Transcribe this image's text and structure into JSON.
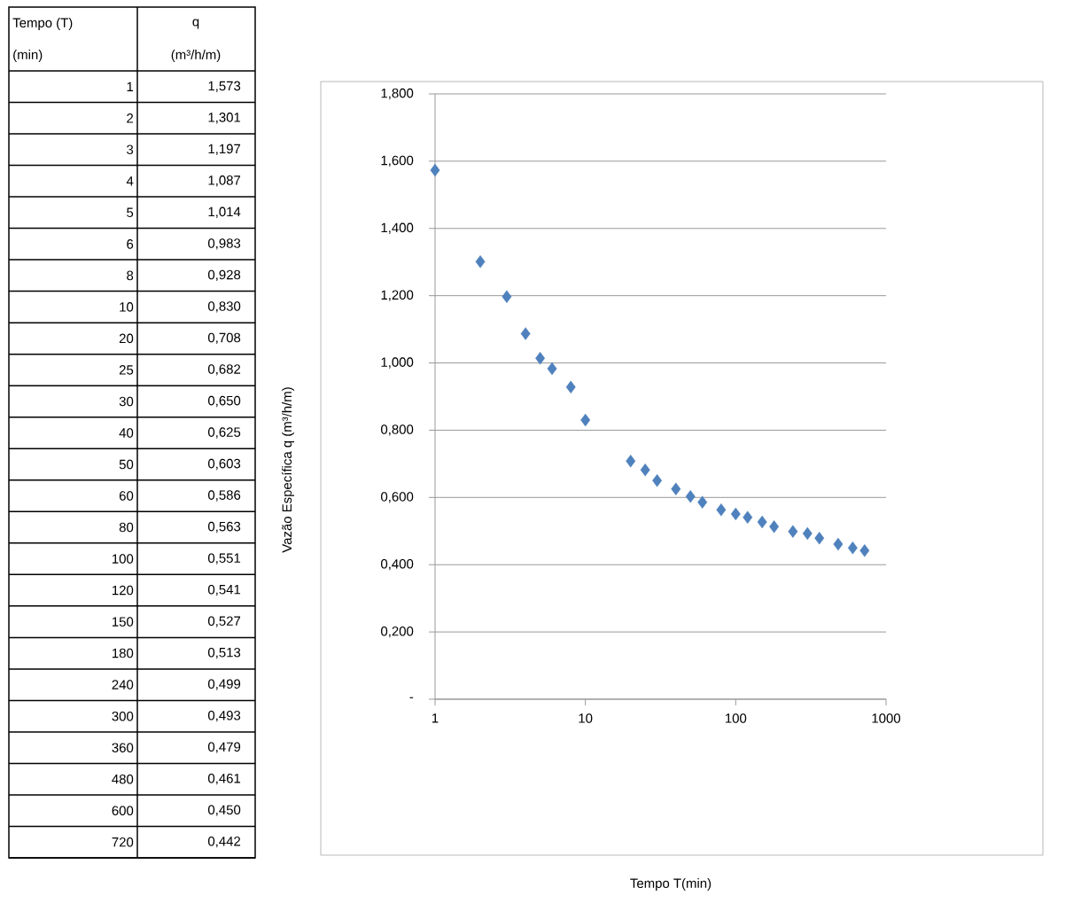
{
  "chart_data": {
    "type": "scatter",
    "x": [
      1,
      2,
      3,
      4,
      5,
      6,
      8,
      10,
      20,
      25,
      30,
      40,
      50,
      60,
      80,
      100,
      120,
      150,
      180,
      240,
      300,
      360,
      480,
      600,
      720
    ],
    "values": [
      1.573,
      1.301,
      1.197,
      1.087,
      1.014,
      0.983,
      0.928,
      0.83,
      0.708,
      0.682,
      0.65,
      0.625,
      0.603,
      0.586,
      0.563,
      0.551,
      0.541,
      0.527,
      0.513,
      0.499,
      0.493,
      0.479,
      0.461,
      0.45,
      0.442
    ],
    "color": "#4f81bd",
    "marker": "diamond",
    "log": "x",
    "grid": "y",
    "xlim": [
      1,
      1000
    ],
    "xticks": [
      1,
      10,
      100,
      1000
    ],
    "ylim": [
      0,
      1.8
    ],
    "yticks": [
      {
        "value": 0,
        "label": "-"
      },
      {
        "value": 0.2,
        "label": "0,200"
      },
      {
        "value": 0.4,
        "label": "0,400"
      },
      {
        "value": 0.6,
        "label": "0,600"
      },
      {
        "value": 0.8,
        "label": "0,800"
      },
      {
        "value": 1.0,
        "label": "1,000"
      },
      {
        "value": 1.2,
        "label": "1,200"
      },
      {
        "value": 1.4,
        "label": "1,400"
      },
      {
        "value": 1.6,
        "label": "1,600"
      },
      {
        "value": 1.8,
        "label": "1,800"
      }
    ],
    "annotations": [
      "Vazão Específica q (m³/h/m)",
      "Tempo T(min)",
      "Tempo (T)",
      "(min)",
      "q",
      "(m³/h/m)",
      "1",
      "1,573",
      "2",
      "1,301",
      "3",
      "1,197",
      "4",
      "1,087",
      "5",
      "1,014",
      "6",
      "0,983",
      "8",
      "0,928",
      "10",
      "0,830",
      "20",
      "0,708",
      "25",
      "0,682",
      "30",
      "0,650",
      "40",
      "0,625",
      "50",
      "0,603",
      "60",
      "0,586",
      "80",
      "0,563",
      "100",
      "0,551",
      "120",
      "0,541",
      "150",
      "0,527",
      "180",
      "0,513",
      "240",
      "0,499",
      "300",
      "0,493",
      "360",
      "0,479",
      "480",
      "0,461",
      "600",
      "0,450",
      "720",
      "0,442"
    ]
  }
}
